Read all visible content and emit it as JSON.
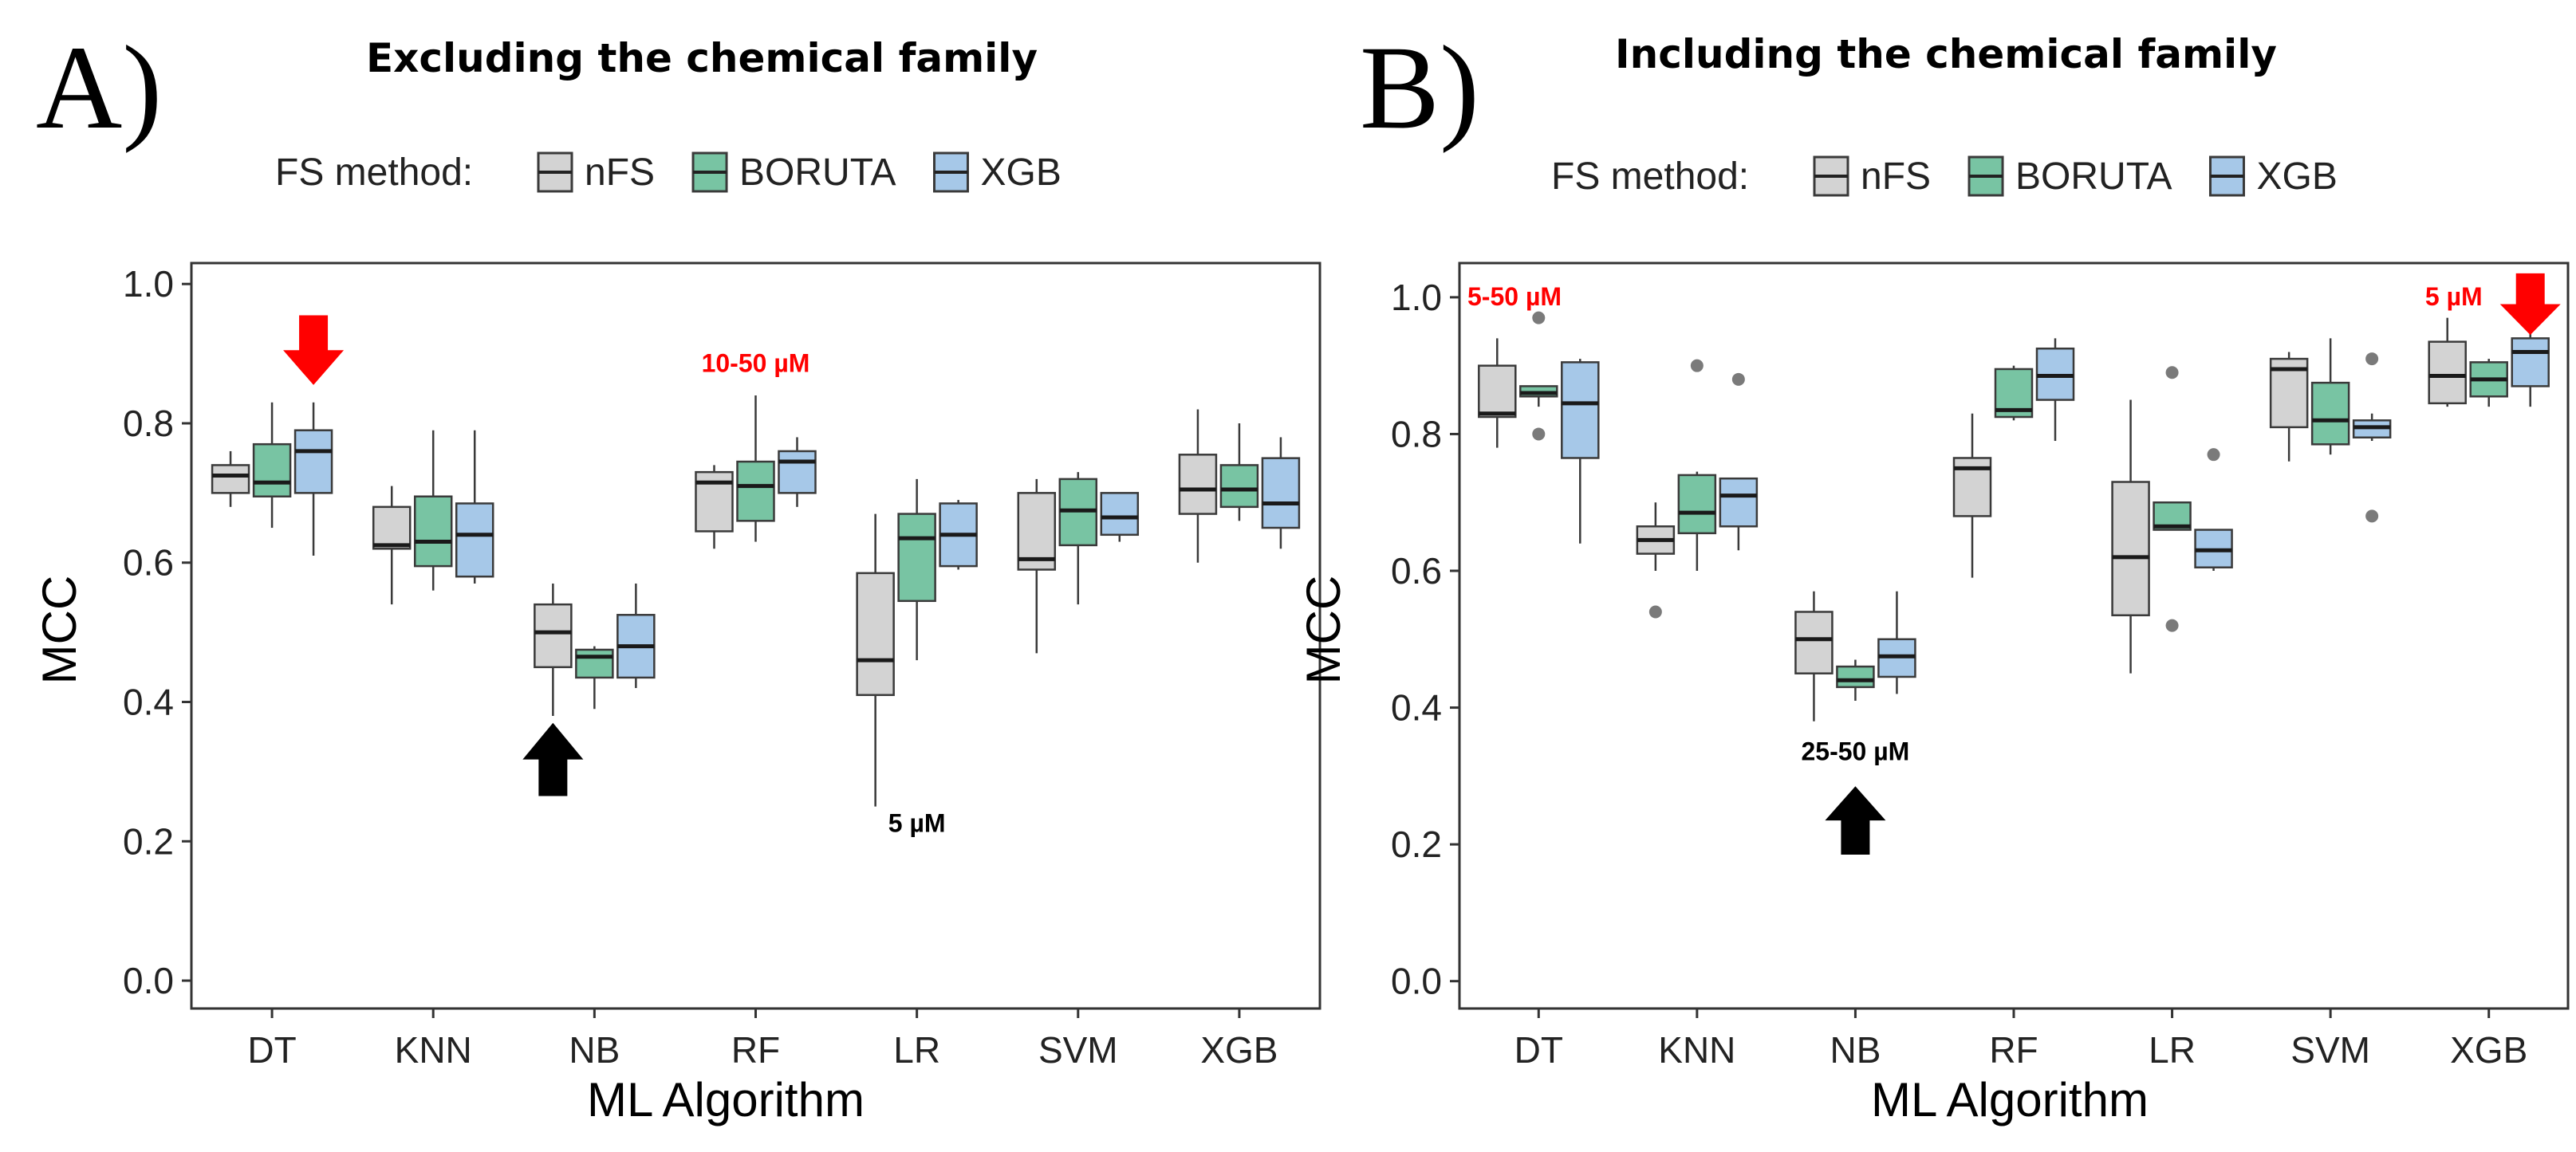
{
  "legend": {
    "title": "FS method:",
    "items": [
      {
        "label": "nFS",
        "color": "#d3d3d3"
      },
      {
        "label": "BORUTA",
        "color": "#78c4a3"
      },
      {
        "label": "XGB",
        "color": "#a6c8e8"
      }
    ]
  },
  "colors": {
    "highlight": "#ff0000",
    "arrow_dark": "#000000",
    "box_edge": "#3a3a3a"
  },
  "chart_data": [
    {
      "type": "box",
      "panel_label": "A)",
      "title": "Excluding the chemical family",
      "xlabel": "ML Algorithm",
      "ylabel": "MCC",
      "ylim": [
        -0.04,
        1.03
      ],
      "yticks": [
        "0.0",
        "0.2",
        "0.4",
        "0.6",
        "0.8",
        "1.0"
      ],
      "categories": [
        "DT",
        "KNN",
        "NB",
        "RF",
        "LR",
        "SVM",
        "XGB"
      ],
      "series": [
        {
          "name": "nFS",
          "boxes": [
            {
              "min": 0.68,
              "q1": 0.7,
              "median": 0.725,
              "q3": 0.74,
              "max": 0.76,
              "outliers": []
            },
            {
              "min": 0.54,
              "q1": 0.62,
              "median": 0.625,
              "q3": 0.68,
              "max": 0.71,
              "outliers": []
            },
            {
              "min": 0.38,
              "q1": 0.45,
              "median": 0.5,
              "q3": 0.54,
              "max": 0.57,
              "outliers": []
            },
            {
              "min": 0.62,
              "q1": 0.645,
              "median": 0.715,
              "q3": 0.73,
              "max": 0.74,
              "outliers": []
            },
            {
              "min": 0.25,
              "q1": 0.41,
              "median": 0.46,
              "q3": 0.585,
              "max": 0.67,
              "outliers": []
            },
            {
              "min": 0.47,
              "q1": 0.59,
              "median": 0.605,
              "q3": 0.7,
              "max": 0.72,
              "outliers": []
            },
            {
              "min": 0.6,
              "q1": 0.67,
              "median": 0.705,
              "q3": 0.755,
              "max": 0.82,
              "outliers": []
            }
          ]
        },
        {
          "name": "BORUTA",
          "boxes": [
            {
              "min": 0.65,
              "q1": 0.695,
              "median": 0.715,
              "q3": 0.77,
              "max": 0.83,
              "outliers": []
            },
            {
              "min": 0.56,
              "q1": 0.595,
              "median": 0.63,
              "q3": 0.695,
              "max": 0.79,
              "outliers": []
            },
            {
              "min": 0.39,
              "q1": 0.435,
              "median": 0.465,
              "q3": 0.475,
              "max": 0.48,
              "outliers": []
            },
            {
              "min": 0.63,
              "q1": 0.66,
              "median": 0.71,
              "q3": 0.745,
              "max": 0.84,
              "outliers": []
            },
            {
              "min": 0.46,
              "q1": 0.545,
              "median": 0.635,
              "q3": 0.67,
              "max": 0.72,
              "outliers": []
            },
            {
              "min": 0.54,
              "q1": 0.625,
              "median": 0.675,
              "q3": 0.72,
              "max": 0.73,
              "outliers": []
            },
            {
              "min": 0.66,
              "q1": 0.68,
              "median": 0.705,
              "q3": 0.74,
              "max": 0.8,
              "outliers": []
            }
          ]
        },
        {
          "name": "XGB",
          "boxes": [
            {
              "min": 0.61,
              "q1": 0.7,
              "median": 0.76,
              "q3": 0.79,
              "max": 0.83,
              "outliers": []
            },
            {
              "min": 0.57,
              "q1": 0.58,
              "median": 0.64,
              "q3": 0.685,
              "max": 0.79,
              "outliers": []
            },
            {
              "min": 0.42,
              "q1": 0.435,
              "median": 0.48,
              "q3": 0.525,
              "max": 0.57,
              "outliers": []
            },
            {
              "min": 0.68,
              "q1": 0.7,
              "median": 0.745,
              "q3": 0.76,
              "max": 0.78,
              "outliers": []
            },
            {
              "min": 0.59,
              "q1": 0.595,
              "median": 0.64,
              "q3": 0.685,
              "max": 0.69,
              "outliers": []
            },
            {
              "min": 0.63,
              "q1": 0.64,
              "median": 0.665,
              "q3": 0.7,
              "max": 0.7,
              "outliers": []
            },
            {
              "min": 0.62,
              "q1": 0.65,
              "median": 0.685,
              "q3": 0.75,
              "max": 0.78,
              "outliers": []
            }
          ]
        }
      ],
      "annotations": [
        {
          "text": "10-50 µM",
          "color": "#ff0000",
          "category": "RF",
          "y": 0.885
        },
        {
          "text": "5 µM",
          "color": "#000000",
          "category": "LR",
          "y": 0.225
        }
      ],
      "arrows": [
        {
          "direction": "down",
          "color": "#ff0000",
          "category": "DT",
          "series": "XGB",
          "y_tip": 0.855,
          "y_tail": 0.955
        },
        {
          "direction": "up",
          "color": "#000000",
          "category": "NB",
          "series": "nFS",
          "y_tip": 0.37,
          "y_tail": 0.265
        }
      ]
    },
    {
      "type": "box",
      "panel_label": "B)",
      "title": "Including the chemical family",
      "xlabel": "ML Algorithm",
      "ylabel": "MCC",
      "ylim": [
        -0.04,
        1.05
      ],
      "yticks": [
        "0.0",
        "0.2",
        "0.4",
        "0.6",
        "0.8",
        "1.0"
      ],
      "categories": [
        "DT",
        "KNN",
        "NB",
        "RF",
        "LR",
        "SVM",
        "XGB"
      ],
      "series": [
        {
          "name": "nFS",
          "boxes": [
            {
              "min": 0.78,
              "q1": 0.825,
              "median": 0.83,
              "q3": 0.9,
              "max": 0.94,
              "outliers": []
            },
            {
              "min": 0.6,
              "q1": 0.625,
              "median": 0.645,
              "q3": 0.665,
              "max": 0.7,
              "outliers": [
                0.54
              ]
            },
            {
              "min": 0.38,
              "q1": 0.45,
              "median": 0.5,
              "q3": 0.54,
              "max": 0.57,
              "outliers": []
            },
            {
              "min": 0.59,
              "q1": 0.68,
              "median": 0.75,
              "q3": 0.765,
              "max": 0.83,
              "outliers": []
            },
            {
              "min": 0.45,
              "q1": 0.535,
              "median": 0.62,
              "q3": 0.73,
              "max": 0.85,
              "outliers": []
            },
            {
              "min": 0.76,
              "q1": 0.81,
              "median": 0.895,
              "q3": 0.91,
              "max": 0.92,
              "outliers": []
            },
            {
              "min": 0.84,
              "q1": 0.845,
              "median": 0.885,
              "q3": 0.935,
              "max": 0.97,
              "outliers": []
            }
          ]
        },
        {
          "name": "BORUTA",
          "boxes": [
            {
              "min": 0.84,
              "q1": 0.855,
              "median": 0.86,
              "q3": 0.87,
              "max": 0.87,
              "outliers": [
                0.8,
                0.97
              ]
            },
            {
              "min": 0.6,
              "q1": 0.655,
              "median": 0.685,
              "q3": 0.74,
              "max": 0.745,
              "outliers": [
                0.9
              ]
            },
            {
              "min": 0.41,
              "q1": 0.43,
              "median": 0.44,
              "q3": 0.46,
              "max": 0.47,
              "outliers": []
            },
            {
              "min": 0.82,
              "q1": 0.825,
              "median": 0.835,
              "q3": 0.895,
              "max": 0.9,
              "outliers": []
            },
            {
              "min": 0.66,
              "q1": 0.66,
              "median": 0.665,
              "q3": 0.7,
              "max": 0.7,
              "outliers": [
                0.52,
                0.89
              ]
            },
            {
              "min": 0.77,
              "q1": 0.785,
              "median": 0.82,
              "q3": 0.875,
              "max": 0.94,
              "outliers": []
            },
            {
              "min": 0.84,
              "q1": 0.855,
              "median": 0.88,
              "q3": 0.905,
              "max": 0.91,
              "outliers": []
            }
          ]
        },
        {
          "name": "XGB",
          "boxes": [
            {
              "min": 0.64,
              "q1": 0.765,
              "median": 0.845,
              "q3": 0.905,
              "max": 0.91,
              "outliers": []
            },
            {
              "min": 0.63,
              "q1": 0.665,
              "median": 0.71,
              "q3": 0.735,
              "max": 0.735,
              "outliers": [
                0.88
              ]
            },
            {
              "min": 0.42,
              "q1": 0.445,
              "median": 0.475,
              "q3": 0.5,
              "max": 0.57,
              "outliers": []
            },
            {
              "min": 0.79,
              "q1": 0.85,
              "median": 0.885,
              "q3": 0.925,
              "max": 0.94,
              "outliers": []
            },
            {
              "min": 0.6,
              "q1": 0.605,
              "median": 0.63,
              "q3": 0.66,
              "max": 0.66,
              "outliers": [
                0.77
              ]
            },
            {
              "min": 0.79,
              "q1": 0.795,
              "median": 0.81,
              "q3": 0.82,
              "max": 0.83,
              "outliers": [
                0.68,
                0.91
              ]
            },
            {
              "min": 0.84,
              "q1": 0.87,
              "median": 0.92,
              "q3": 0.94,
              "max": 0.95,
              "outliers": []
            }
          ]
        }
      ],
      "annotations": [
        {
          "text": "5-50 µM",
          "color": "#ff0000",
          "category": "left-edge",
          "y": 1.0
        },
        {
          "text": "5 µM",
          "color": "#ff0000",
          "category": "XGB",
          "y": 1.0
        },
        {
          "text": "25-50 µM",
          "color": "#000000",
          "category": "NB",
          "y": 0.335
        }
      ],
      "arrows": [
        {
          "direction": "down",
          "color": "#ff0000",
          "category": "XGB",
          "series": "XGB",
          "y_tip": 0.945,
          "y_tail": 1.035
        },
        {
          "direction": "up",
          "color": "#000000",
          "category": "NB",
          "series": "BORUTA",
          "y_tip": 0.285,
          "y_tail": 0.185
        }
      ]
    }
  ]
}
